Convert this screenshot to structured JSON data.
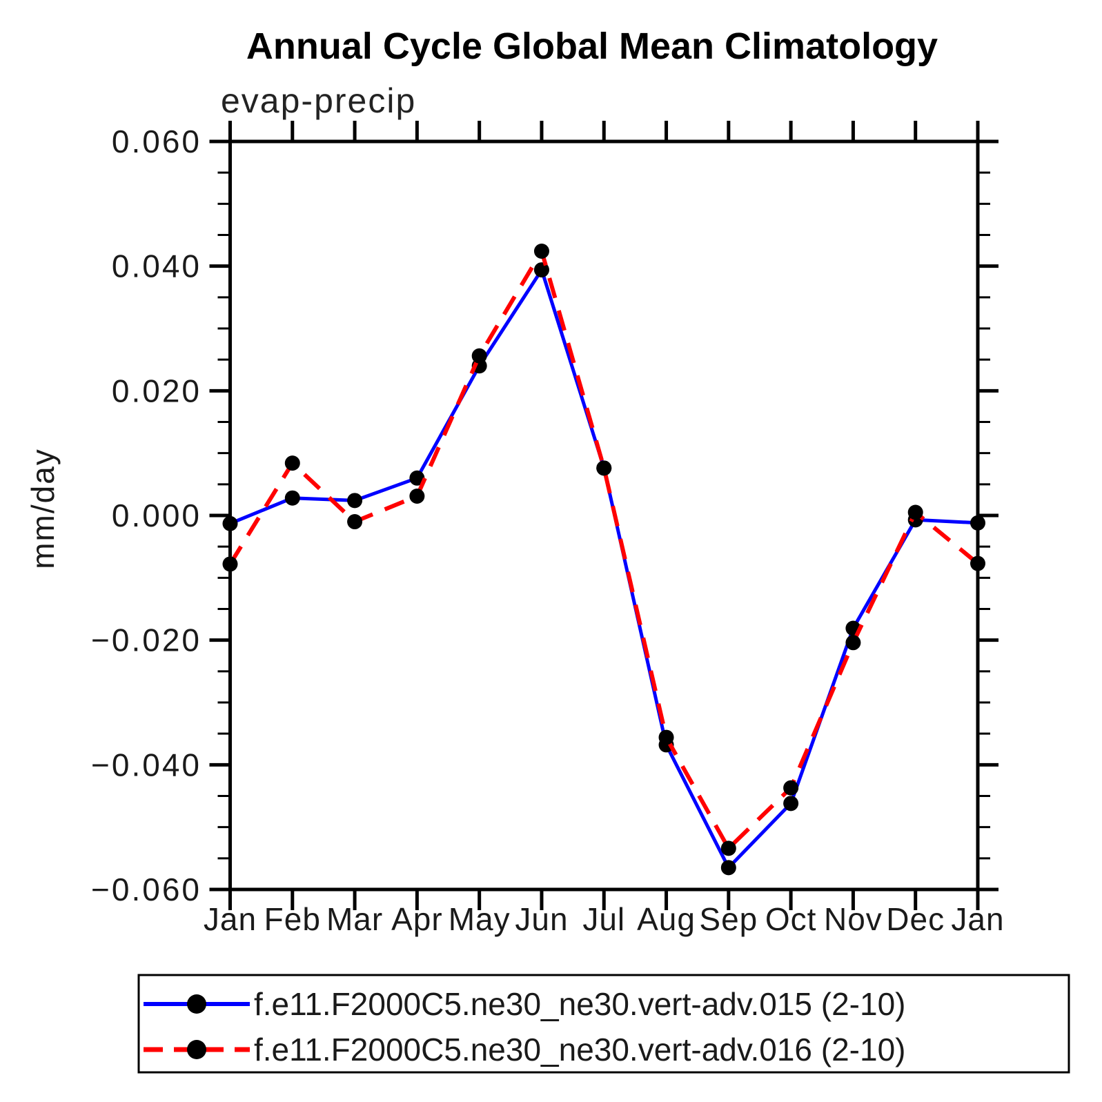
{
  "title": "Annual Cycle Global Mean Climatology",
  "chart_data": {
    "type": "line",
    "title": "Annual Cycle Global Mean Climatology",
    "subtitle": "evap-precip",
    "ylabel": "mm/day",
    "ylim": [
      -0.06,
      0.06
    ],
    "ytick_step": 0.02,
    "yminor_step": 0.005,
    "ytick_labels": [
      "0.060",
      "0.040",
      "0.020",
      "0.000",
      "−0.020",
      "−0.040",
      "−0.060"
    ],
    "categories": [
      "Jan",
      "Feb",
      "Mar",
      "Apr",
      "May",
      "Jun",
      "Jul",
      "Aug",
      "Sep",
      "Oct",
      "Nov",
      "Dec",
      "Jan"
    ],
    "grid": false,
    "legend_position": "bottom",
    "marker_color": "#000000",
    "series": [
      {
        "name": "f.e11.F2000C5.ne30_ne30.vert-adv.015 (2-10)",
        "color": "#0000ff",
        "style": "solid",
        "marker": "circle",
        "values": [
          -0.0013,
          0.0028,
          0.0024,
          0.006,
          0.024,
          0.0394,
          0.0076,
          -0.0368,
          -0.0565,
          -0.0462,
          -0.0181,
          -0.0007,
          -0.0012
        ]
      },
      {
        "name": "f.e11.F2000C5.ne30_ne30.vert-adv.016 (2-10)",
        "color": "#ff0000",
        "style": "dashed",
        "marker": "circle",
        "values": [
          -0.0078,
          0.0084,
          -0.001,
          0.0031,
          0.0256,
          0.0424,
          0.0076,
          -0.0356,
          -0.0534,
          -0.0437,
          -0.0204,
          0.0005,
          -0.0077
        ]
      }
    ]
  }
}
